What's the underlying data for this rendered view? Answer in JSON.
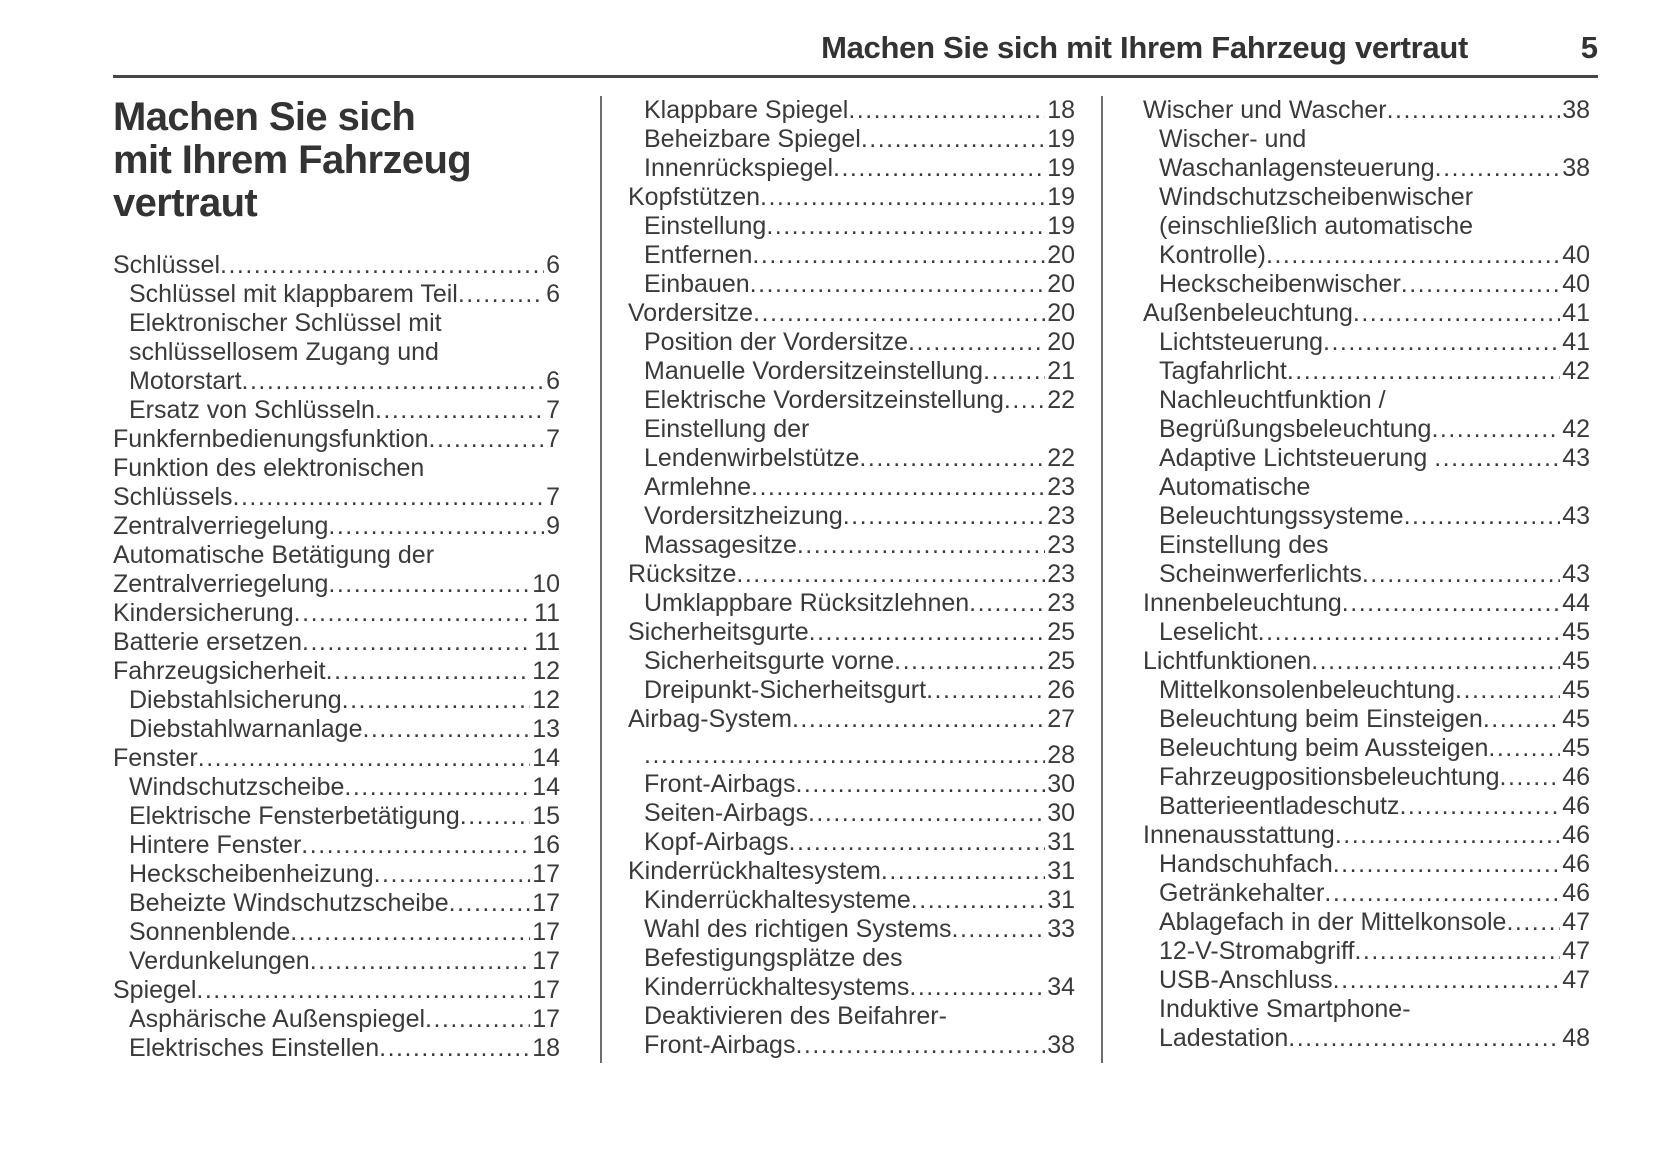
{
  "header": {
    "title": "Machen Sie sich mit Ihrem Fahrzeug vertraut",
    "page_number": "5"
  },
  "section_title": "Machen Sie sich\nmit Ihrem Fahrzeug\nvertraut",
  "colors": {
    "text": "#3a3a3a",
    "heading": "#333333",
    "header_rule": "#474747",
    "column_divider": "#6e6e6e",
    "background": "#ffffff"
  },
  "columns": [
    {
      "entries": [
        {
          "level": 1,
          "label": "Schlüssel",
          "page": "6"
        },
        {
          "level": 2,
          "label": "Schlüssel mit klappbarem Teil",
          "page": "6"
        },
        {
          "level": 2,
          "lines": [
            "Elektronischer Schlüssel mit",
            "schlüssellosem Zugang und"
          ],
          "label": "Motorstart",
          "page": "6"
        },
        {
          "level": 2,
          "label": "Ersatz von Schlüsseln",
          "page": "7"
        },
        {
          "level": 1,
          "label": "Funkfernbedienungsfunktion",
          "page": "7"
        },
        {
          "level": 1,
          "lines": [
            "Funktion des elektronischen"
          ],
          "label": "Schlüssels",
          "page": "7"
        },
        {
          "level": 1,
          "label": "Zentralverriegelung",
          "page": "9"
        },
        {
          "level": 1,
          "lines": [
            "Automatische Betätigung der"
          ],
          "label": "Zentralverriegelung",
          "page": "10"
        },
        {
          "level": 1,
          "label": "Kindersicherung",
          "page": "11"
        },
        {
          "level": 1,
          "label": "Batterie ersetzen",
          "page": "11"
        },
        {
          "level": 1,
          "label": "Fahrzeugsicherheit",
          "page": "12"
        },
        {
          "level": 2,
          "label": "Diebstahlsicherung",
          "page": "12"
        },
        {
          "level": 2,
          "label": "Diebstahlwarnanlage",
          "page": "13"
        },
        {
          "level": 1,
          "label": "Fenster",
          "page": "14"
        },
        {
          "level": 2,
          "label": "Windschutzscheibe",
          "page": "14"
        },
        {
          "level": 2,
          "label": "Elektrische Fensterbetätigung",
          "page": "15"
        },
        {
          "level": 2,
          "label": "Hintere Fenster",
          "page": "16"
        },
        {
          "level": 2,
          "label": "Heckscheibenheizung",
          "page": "17"
        },
        {
          "level": 2,
          "label": "Beheizte Windschutzscheibe",
          "page": "17"
        },
        {
          "level": 2,
          "label": "Sonnenblende",
          "page": "17"
        },
        {
          "level": 2,
          "label": "Verdunkelungen",
          "page": "17"
        },
        {
          "level": 1,
          "label": "Spiegel",
          "page": "17"
        },
        {
          "level": 2,
          "label": "Asphärische Außenspiegel",
          "page": "17"
        },
        {
          "level": 2,
          "label": "Elektrisches Einstellen",
          "page": "18"
        }
      ]
    },
    {
      "entries": [
        {
          "level": 2,
          "label": "Klappbare Spiegel",
          "page": "18"
        },
        {
          "level": 2,
          "label": "Beheizbare Spiegel",
          "page": "19"
        },
        {
          "level": 2,
          "label": "Innenrückspiegel",
          "page": "19"
        },
        {
          "level": 1,
          "label": "Kopfstützen",
          "page": "19"
        },
        {
          "level": 2,
          "label": "Einstellung",
          "page": "19"
        },
        {
          "level": 2,
          "label": "Entfernen",
          "page": "20"
        },
        {
          "level": 2,
          "label": "Einbauen",
          "page": "20"
        },
        {
          "level": 1,
          "label": "Vordersitze",
          "page": "20"
        },
        {
          "level": 2,
          "label": "Position der Vordersitze",
          "page": "20"
        },
        {
          "level": 2,
          "label": "Manuelle Vordersitzeinstellung",
          "page": "21"
        },
        {
          "level": 2,
          "label": "Elektrische Vordersitzeinstellung",
          "page": "22"
        },
        {
          "level": 2,
          "lines": [
            "Einstellung der"
          ],
          "label": "Lendenwirbelstütze",
          "page": "22"
        },
        {
          "level": 2,
          "label": "Armlehne",
          "page": "23"
        },
        {
          "level": 2,
          "label": "Vordersitzheizung",
          "page": "23"
        },
        {
          "level": 2,
          "label": "Massagesitze",
          "page": "23"
        },
        {
          "level": 1,
          "label": "Rücksitze",
          "page": "23"
        },
        {
          "level": 2,
          "label": "Umklappbare Rücksitzlehnen",
          "page": "23"
        },
        {
          "level": 1,
          "label": "Sicherheitsgurte",
          "page": "25"
        },
        {
          "level": 2,
          "label": "Sicherheitsgurte vorne",
          "page": "25"
        },
        {
          "level": 2,
          "label": "Dreipunkt-Sicherheitsgurt",
          "page": "26"
        },
        {
          "level": 1,
          "label": "Airbag-System",
          "page": "27"
        },
        {
          "level": 2,
          "label": "",
          "page": "28",
          "gap": true
        },
        {
          "level": 2,
          "label": "Front-Airbags",
          "page": "30"
        },
        {
          "level": 2,
          "label": "Seiten-Airbags",
          "page": "30"
        },
        {
          "level": 2,
          "label": "Kopf-Airbags",
          "page": "31"
        },
        {
          "level": 1,
          "label": "Kinderrückhaltesystem",
          "page": "31"
        },
        {
          "level": 2,
          "label": "Kinderrückhaltesysteme",
          "page": "31"
        },
        {
          "level": 2,
          "label": "Wahl des richtigen Systems",
          "page": "33"
        },
        {
          "level": 2,
          "lines": [
            "Befestigungsplätze des"
          ],
          "label": "Kinderrückhaltesystems",
          "page": "34"
        },
        {
          "level": 2,
          "lines": [
            "Deaktivieren des Beifahrer-"
          ],
          "label": "Front-Airbags",
          "page": "38"
        }
      ]
    },
    {
      "entries": [
        {
          "level": 1,
          "label": "Wischer und Wascher",
          "page": "38"
        },
        {
          "level": 2,
          "lines": [
            "Wischer- und"
          ],
          "label": "Waschanlagensteuerung",
          "page": "38"
        },
        {
          "level": 2,
          "lines": [
            "Windschutzscheibenwischer",
            "(einschließlich automatische"
          ],
          "label": "Kontrolle)",
          "page": "40"
        },
        {
          "level": 2,
          "label": "Heckscheibenwischer",
          "page": "40"
        },
        {
          "level": 1,
          "label": "Außenbeleuchtung",
          "page": "41"
        },
        {
          "level": 2,
          "label": "Lichtsteuerung",
          "page": "41"
        },
        {
          "level": 2,
          "label": "Tagfahrlicht",
          "page": "42"
        },
        {
          "level": 2,
          "lines": [
            "Nachleuchtfunktion /"
          ],
          "label": "Begrüßungsbeleuchtung",
          "page": "42"
        },
        {
          "level": 2,
          "label": "Adaptive Lichtsteuerung ",
          "page": "43"
        },
        {
          "level": 2,
          "lines": [
            "Automatische"
          ],
          "label": "Beleuchtungssysteme",
          "page": "43"
        },
        {
          "level": 2,
          "lines": [
            "Einstellung des"
          ],
          "label": "Scheinwerferlichts",
          "page": "43"
        },
        {
          "level": 1,
          "label": "Innenbeleuchtung",
          "page": "44"
        },
        {
          "level": 2,
          "label": "Leselicht",
          "page": "45"
        },
        {
          "level": 1,
          "label": "Lichtfunktionen",
          "page": "45"
        },
        {
          "level": 2,
          "label": "Mittelkonsolenbeleuchtung",
          "page": "45"
        },
        {
          "level": 2,
          "label": "Beleuchtung beim Einsteigen",
          "page": "45"
        },
        {
          "level": 2,
          "label": "Beleuchtung beim Aussteigen",
          "page": "45"
        },
        {
          "level": 2,
          "label": "Fahrzeugpositionsbeleuchtung",
          "page": "46"
        },
        {
          "level": 2,
          "label": "Batterieentladeschutz",
          "page": "46"
        },
        {
          "level": 1,
          "label": "Innenausstattung",
          "page": "46"
        },
        {
          "level": 2,
          "label": "Handschuhfach",
          "page": "46"
        },
        {
          "level": 2,
          "label": "Getränkehalter",
          "page": "46"
        },
        {
          "level": 2,
          "label": "Ablagefach in der Mittelkonsole",
          "page": "47"
        },
        {
          "level": 2,
          "label": "12-V-Stromabgriff",
          "page": "47"
        },
        {
          "level": 2,
          "label": "USB-Anschluss",
          "page": "47"
        },
        {
          "level": 2,
          "lines": [
            "Induktive Smartphone-"
          ],
          "label": "Ladestation",
          "page": "48"
        }
      ]
    }
  ]
}
